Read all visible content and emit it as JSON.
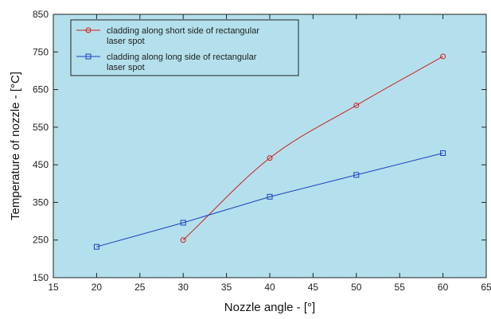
{
  "chart_data": {
    "type": "line",
    "xlabel": "Nozzle angle - [°]",
    "ylabel": "Temperature of nozzle - [°C]",
    "xlim": [
      15,
      65
    ],
    "ylim": [
      150,
      850
    ],
    "x_ticks": [
      "15",
      "20",
      "25",
      "30",
      "35",
      "40",
      "45",
      "50",
      "55",
      "60",
      "65"
    ],
    "y_ticks": [
      "150",
      "250",
      "350",
      "450",
      "550",
      "650",
      "750",
      "850"
    ],
    "plot_background": "#b3e0ec",
    "grid": false,
    "legend_position": "top-left",
    "series": [
      {
        "name_lines": [
          "cladding along short side of rectangular",
          "laser spot"
        ],
        "color": "#d11f1f",
        "marker": "circle",
        "smooth": true,
        "x": [
          30,
          40,
          50,
          60
        ],
        "y": [
          250,
          468,
          608,
          738
        ]
      },
      {
        "name_lines": [
          "cladding along long side of rectangular",
          "laser spot"
        ],
        "color": "#1c3fc0",
        "marker": "square",
        "smooth": false,
        "x": [
          20,
          30,
          40,
          50,
          60
        ],
        "y": [
          232,
          296,
          365,
          423,
          481
        ]
      }
    ]
  }
}
